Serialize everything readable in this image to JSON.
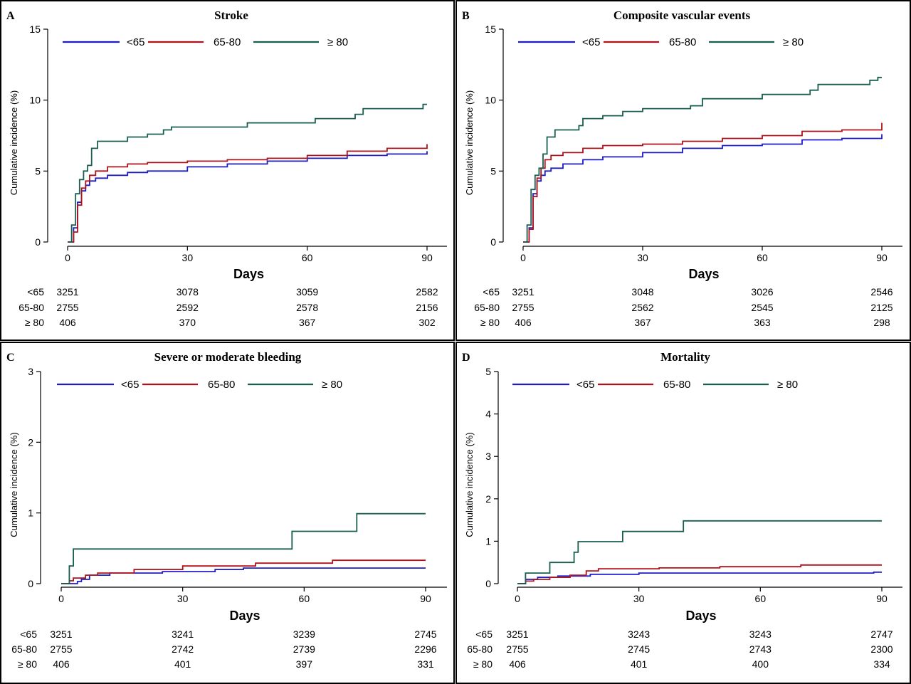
{
  "colors": {
    "lt65": "#1c1cc8",
    "r65_80": "#b0121c",
    "ge80": "#1a5e50"
  },
  "legend_labels": [
    "<65",
    "65-80",
    "≥ 80"
  ],
  "chart_data": [
    {
      "panel": "A",
      "title": "Stroke",
      "type": "line",
      "xlabel": "Days",
      "ylabel": "Cumulative incidence (%)",
      "xlim": [
        0,
        90
      ],
      "ylim": [
        0,
        15
      ],
      "xticks": [
        0,
        30,
        60,
        90
      ],
      "yticks": [
        0,
        5,
        10,
        15
      ],
      "series": [
        {
          "name": "<65",
          "color": "#1c1cc8",
          "x": [
            0,
            1.5,
            2.5,
            3.5,
            4.5,
            5.5,
            7,
            10,
            15,
            20,
            30,
            40,
            50,
            60,
            70,
            80,
            90
          ],
          "y": [
            0,
            1.0,
            2.8,
            3.6,
            4.0,
            4.3,
            4.5,
            4.7,
            4.9,
            5.0,
            5.3,
            5.5,
            5.7,
            5.9,
            6.1,
            6.2,
            6.4
          ]
        },
        {
          "name": "65-80",
          "color": "#b0121c",
          "x": [
            0,
            1.5,
            2.5,
            3.5,
            4.5,
            5.5,
            7,
            10,
            15,
            20,
            30,
            40,
            50,
            60,
            70,
            80,
            90
          ],
          "y": [
            0,
            0.7,
            2.6,
            3.8,
            4.3,
            4.7,
            5.0,
            5.3,
            5.5,
            5.6,
            5.7,
            5.8,
            5.9,
            6.1,
            6.4,
            6.6,
            6.9
          ]
        },
        {
          "name": "≥ 80",
          "color": "#1a5e50",
          "x": [
            0,
            1,
            2,
            3,
            4,
            5,
            6,
            7.5,
            15,
            20,
            24,
            26,
            45,
            62,
            72,
            74,
            89,
            90
          ],
          "y": [
            0,
            1.2,
            3.4,
            4.4,
            5.0,
            5.4,
            6.6,
            7.1,
            7.4,
            7.6,
            7.9,
            8.1,
            8.4,
            8.7,
            9.0,
            9.4,
            9.7,
            9.7
          ]
        }
      ],
      "risk_table": {
        "x": [
          0,
          30,
          60,
          90
        ],
        "rows": [
          {
            "label": "<65",
            "values": [
              "3251",
              "3078",
              "3059",
              "2582"
            ]
          },
          {
            "label": "65-80",
            "values": [
              "2755",
              "2592",
              "2578",
              "2156"
            ]
          },
          {
            "label": "≥ 80",
            "values": [
              "406",
              "370",
              "367",
              "302"
            ]
          }
        ]
      }
    },
    {
      "panel": "B",
      "title": "Composite vascular events",
      "type": "line",
      "xlabel": "Days",
      "ylabel": "Cumulative incidence (%)",
      "xlim": [
        0,
        90
      ],
      "ylim": [
        0,
        15
      ],
      "xticks": [
        0,
        30,
        60,
        90
      ],
      "yticks": [
        0,
        5,
        10,
        15
      ],
      "series": [
        {
          "name": "<65",
          "color": "#1c1cc8",
          "x": [
            0,
            1.5,
            2.5,
            3.5,
            4.5,
            5.5,
            7,
            10,
            15,
            20,
            30,
            40,
            50,
            60,
            70,
            80,
            90
          ],
          "y": [
            0,
            1.0,
            3.4,
            4.3,
            4.7,
            5.0,
            5.2,
            5.5,
            5.8,
            6.0,
            6.3,
            6.6,
            6.8,
            6.9,
            7.2,
            7.3,
            7.6
          ]
        },
        {
          "name": "65-80",
          "color": "#b0121c",
          "x": [
            0,
            1.5,
            2.5,
            3.5,
            4.5,
            5.5,
            7,
            10,
            15,
            20,
            30,
            40,
            50,
            60,
            70,
            80,
            90
          ],
          "y": [
            0,
            0.9,
            3.2,
            4.5,
            5.2,
            5.8,
            6.1,
            6.3,
            6.6,
            6.8,
            6.9,
            7.1,
            7.3,
            7.5,
            7.8,
            7.9,
            8.4
          ]
        },
        {
          "name": "≥ 80",
          "color": "#1a5e50",
          "x": [
            0,
            1,
            2,
            3,
            4,
            5,
            6,
            8,
            14,
            15,
            20,
            25,
            30,
            42,
            45,
            60,
            72,
            74,
            80,
            87,
            89,
            90
          ],
          "y": [
            0,
            1.2,
            3.7,
            4.7,
            5.2,
            6.2,
            7.4,
            7.9,
            8.2,
            8.7,
            8.9,
            9.2,
            9.4,
            9.6,
            10.1,
            10.4,
            10.7,
            11.1,
            11.1,
            11.4,
            11.6,
            11.6
          ]
        }
      ],
      "risk_table": {
        "x": [
          0,
          30,
          60,
          90
        ],
        "rows": [
          {
            "label": "<65",
            "values": [
              "3251",
              "3048",
              "3026",
              "2546"
            ]
          },
          {
            "label": "65-80",
            "values": [
              "2755",
              "2562",
              "2545",
              "2125"
            ]
          },
          {
            "label": "≥ 80",
            "values": [
              "406",
              "367",
              "363",
              "298"
            ]
          }
        ]
      }
    },
    {
      "panel": "C",
      "title": "Severe or moderate bleeding",
      "type": "line",
      "xlabel": "Days",
      "ylabel": "Cumulative incidence (%)",
      "xlim": [
        0,
        90
      ],
      "ylim": [
        0,
        3
      ],
      "xticks": [
        0,
        30,
        60,
        90
      ],
      "yticks": [
        0,
        1,
        2,
        3
      ],
      "series": [
        {
          "name": "<65",
          "color": "#1c1cc8",
          "x": [
            0,
            4,
            5,
            7,
            12,
            25,
            38,
            45,
            90
          ],
          "y": [
            0,
            0.03,
            0.06,
            0.12,
            0.15,
            0.17,
            0.2,
            0.22,
            0.22
          ]
        },
        {
          "name": "65-80",
          "color": "#b0121c",
          "x": [
            0,
            2,
            3,
            6,
            9,
            18,
            30,
            48,
            67,
            90
          ],
          "y": [
            0,
            0.04,
            0.08,
            0.12,
            0.15,
            0.2,
            0.25,
            0.29,
            0.33,
            0.33
          ]
        },
        {
          "name": "≥ 80",
          "color": "#1a5e50",
          "x": [
            0,
            2,
            3,
            57,
            73,
            90
          ],
          "y": [
            0,
            0.25,
            0.49,
            0.74,
            0.99,
            0.99
          ]
        }
      ],
      "risk_table": {
        "x": [
          0,
          30,
          60,
          90
        ],
        "rows": [
          {
            "label": "<65",
            "values": [
              "3251",
              "3241",
              "3239",
              "2745"
            ]
          },
          {
            "label": "65-80",
            "values": [
              "2755",
              "2742",
              "2739",
              "2296"
            ]
          },
          {
            "label": "≥ 80",
            "values": [
              "406",
              "401",
              "397",
              "331"
            ]
          }
        ]
      }
    },
    {
      "panel": "D",
      "title": "Mortality",
      "type": "line",
      "xlabel": "Days",
      "ylabel": "Cumulative incidence (%)",
      "xlim": [
        0,
        90
      ],
      "ylim": [
        0,
        5
      ],
      "xticks": [
        0,
        30,
        60,
        90
      ],
      "yticks": [
        0,
        1,
        2,
        3,
        4,
        5
      ],
      "series": [
        {
          "name": "<65",
          "color": "#1c1cc8",
          "x": [
            0,
            2,
            5,
            10,
            18,
            30,
            50,
            88,
            90
          ],
          "y": [
            0,
            0.1,
            0.15,
            0.18,
            0.22,
            0.25,
            0.25,
            0.27,
            0.27
          ]
        },
        {
          "name": "65-80",
          "color": "#b0121c",
          "x": [
            0,
            2,
            4,
            8,
            13,
            17,
            20,
            35,
            50,
            70,
            90
          ],
          "y": [
            0,
            0.06,
            0.1,
            0.15,
            0.2,
            0.3,
            0.35,
            0.37,
            0.4,
            0.44,
            0.44
          ]
        },
        {
          "name": "≥ 80",
          "color": "#1a5e50",
          "x": [
            0,
            2,
            8,
            14,
            15,
            26,
            41,
            90
          ],
          "y": [
            0,
            0.25,
            0.5,
            0.74,
            0.99,
            1.23,
            1.48,
            1.48
          ]
        }
      ],
      "risk_table": {
        "x": [
          0,
          30,
          60,
          90
        ],
        "rows": [
          {
            "label": "<65",
            "values": [
              "3251",
              "3243",
              "3243",
              "2747"
            ]
          },
          {
            "label": "65-80",
            "values": [
              "2755",
              "2745",
              "2743",
              "2300"
            ]
          },
          {
            "label": "≥ 80",
            "values": [
              "406",
              "401",
              "400",
              "334"
            ]
          }
        ]
      }
    }
  ]
}
